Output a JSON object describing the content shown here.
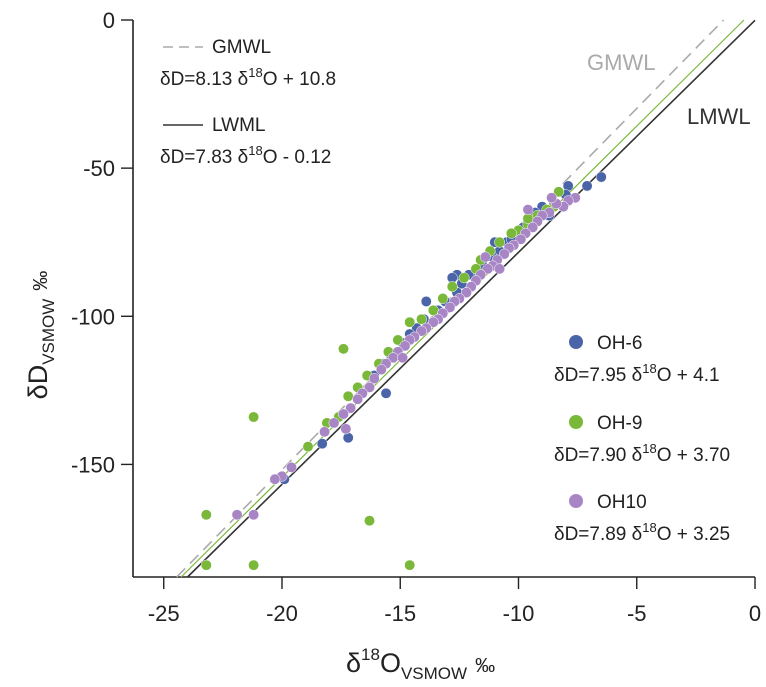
{
  "chart_data": {
    "type": "scatter",
    "xlim": [
      -26.3,
      0
    ],
    "ylim": [
      -188,
      0
    ],
    "x_ticks": [
      -25,
      -20,
      -15,
      -10,
      -5,
      0
    ],
    "y_ticks": [
      0,
      -50,
      -100,
      -150
    ],
    "x_tick_labels": [
      "-25",
      "-20",
      "-15",
      "-10",
      "-5",
      "0"
    ],
    "y_tick_labels": [
      "0",
      "-50",
      "-100",
      "-150"
    ],
    "grid": false,
    "xlabel": {
      "base": "δ",
      "sup": "18",
      "main": "O",
      "sub": "VSMOW",
      "unit": "‰"
    },
    "ylabel": {
      "main": "δD",
      "sub": "VSMOW",
      "unit": "‰"
    },
    "colors": {
      "oh6": "#4a64a8",
      "oh9": "#7ab83a",
      "oh10": "#a886c6",
      "gmwl": "#aaaaaa",
      "lmwl": "#333333"
    },
    "lines": [
      {
        "id": "gmwl",
        "label": "GMWL",
        "slope": 8.13,
        "intercept": 10.8,
        "style": "dashed"
      },
      {
        "id": "lmwl",
        "label": "LMWL",
        "slope": 7.83,
        "intercept": -0.12,
        "style": "solid"
      },
      {
        "id": "oh9-fit",
        "slope": 7.9,
        "intercept": 3.7,
        "style": "solid"
      }
    ],
    "line_legend": [
      {
        "name": "GMWL",
        "eq_pre": "δD=8.13 δ",
        "eq_sup": "18",
        "eq_post": "O + 10.8"
      },
      {
        "name": "LWML",
        "eq_pre": "δD=7.83 δ",
        "eq_sup": "18",
        "eq_post": "O - 0.12"
      }
    ],
    "series_legend": [
      {
        "name": "OH-6",
        "eq_pre": "δD=7.95 δ",
        "eq_sup": "18",
        "eq_post": "O + 4.1"
      },
      {
        "name": "OH-9",
        "eq_pre": "δD=7.90 δ",
        "eq_sup": "18",
        "eq_post": "O + 3.70"
      },
      {
        "name": "OH10",
        "eq_pre": "δD=7.89 δ",
        "eq_sup": "18",
        "eq_post": "O + 3.25"
      }
    ],
    "series": [
      {
        "name": "OH-6",
        "color_key": "oh6",
        "points": [
          [
            -6.5,
            -53
          ],
          [
            -7.1,
            -56
          ],
          [
            -7.9,
            -56
          ],
          [
            -8.0,
            -59
          ],
          [
            -8.5,
            -62
          ],
          [
            -9.0,
            -63
          ],
          [
            -9.3,
            -65
          ],
          [
            -9.6,
            -68
          ],
          [
            -9.8,
            -70
          ],
          [
            -10.1,
            -72
          ],
          [
            -10.5,
            -75
          ],
          [
            -10.8,
            -78
          ],
          [
            -11.1,
            -80
          ],
          [
            -11.5,
            -83
          ],
          [
            -11.8,
            -85
          ],
          [
            -12.1,
            -86
          ],
          [
            -12.4,
            -89
          ],
          [
            -12.6,
            -86
          ],
          [
            -12.8,
            -87
          ],
          [
            -12.6,
            -92
          ],
          [
            -13.1,
            -95
          ],
          [
            -13.4,
            -98
          ],
          [
            -13.9,
            -95
          ],
          [
            -14.0,
            -101
          ],
          [
            -14.3,
            -104
          ],
          [
            -14.6,
            -106
          ],
          [
            -14.9,
            -109
          ],
          [
            -15.4,
            -113
          ],
          [
            -15.7,
            -116
          ],
          [
            -16.1,
            -120
          ],
          [
            -15.6,
            -126
          ],
          [
            -17.2,
            -141
          ],
          [
            -18.3,
            -143
          ],
          [
            -19.9,
            -155
          ],
          [
            -11.0,
            -75
          ],
          [
            -10.3,
            -74
          ],
          [
            -8.7,
            -66
          ]
        ]
      },
      {
        "name": "OH-9",
        "color_key": "oh9",
        "points": [
          [
            -8.3,
            -58
          ],
          [
            -8.5,
            -63
          ],
          [
            -8.8,
            -64
          ],
          [
            -9.2,
            -66
          ],
          [
            -9.6,
            -69
          ],
          [
            -10.0,
            -71
          ],
          [
            -10.3,
            -72
          ],
          [
            -10.8,
            -75
          ],
          [
            -11.2,
            -78
          ],
          [
            -11.6,
            -81
          ],
          [
            -11.8,
            -84
          ],
          [
            -12.3,
            -87
          ],
          [
            -12.8,
            -90
          ],
          [
            -13.2,
            -94
          ],
          [
            -13.6,
            -98
          ],
          [
            -14.1,
            -101
          ],
          [
            -14.6,
            -102
          ],
          [
            -15.1,
            -108
          ],
          [
            -15.5,
            -112
          ],
          [
            -15.9,
            -116
          ],
          [
            -16.4,
            -120
          ],
          [
            -16.8,
            -124
          ],
          [
            -17.2,
            -127
          ],
          [
            -17.4,
            -111
          ],
          [
            -17.6,
            -134
          ],
          [
            -18.1,
            -136
          ],
          [
            -18.9,
            -144
          ],
          [
            -21.2,
            -134
          ],
          [
            -23.2,
            -167
          ],
          [
            -23.2,
            -184
          ],
          [
            -21.2,
            -184
          ],
          [
            -16.3,
            -169
          ],
          [
            -14.6,
            -184
          ],
          [
            -9.6,
            -67
          ]
        ]
      },
      {
        "name": "OH10",
        "color_key": "oh10",
        "points": [
          [
            -7.6,
            -60
          ],
          [
            -7.9,
            -61
          ],
          [
            -8.1,
            -63
          ],
          [
            -8.4,
            -62
          ],
          [
            -8.7,
            -65
          ],
          [
            -9.0,
            -66
          ],
          [
            -9.2,
            -68
          ],
          [
            -9.4,
            -70
          ],
          [
            -9.7,
            -72
          ],
          [
            -9.9,
            -74
          ],
          [
            -10.2,
            -76
          ],
          [
            -10.4,
            -77
          ],
          [
            -10.6,
            -79
          ],
          [
            -10.9,
            -81
          ],
          [
            -11.1,
            -83
          ],
          [
            -11.3,
            -84
          ],
          [
            -11.6,
            -86
          ],
          [
            -11.8,
            -88
          ],
          [
            -12.0,
            -90
          ],
          [
            -12.2,
            -92
          ],
          [
            -12.5,
            -94
          ],
          [
            -12.7,
            -95
          ],
          [
            -12.9,
            -97
          ],
          [
            -13.2,
            -99
          ],
          [
            -13.4,
            -101
          ],
          [
            -13.6,
            -102
          ],
          [
            -13.9,
            -104
          ],
          [
            -14.1,
            -105
          ],
          [
            -14.4,
            -107
          ],
          [
            -14.6,
            -108
          ],
          [
            -14.8,
            -110
          ],
          [
            -15.1,
            -112
          ],
          [
            -15.3,
            -114
          ],
          [
            -15.6,
            -116
          ],
          [
            -15.8,
            -118
          ],
          [
            -16.1,
            -121
          ],
          [
            -16.3,
            -124
          ],
          [
            -16.6,
            -126
          ],
          [
            -16.8,
            -128
          ],
          [
            -17.1,
            -131
          ],
          [
            -17.4,
            -133
          ],
          [
            -17.8,
            -136
          ],
          [
            -18.2,
            -139
          ],
          [
            -19.6,
            -151
          ],
          [
            -20.0,
            -154
          ],
          [
            -20.3,
            -155
          ],
          [
            -21.2,
            -167
          ],
          [
            -21.9,
            -167
          ],
          [
            -17.3,
            -138
          ],
          [
            -14.9,
            -114
          ],
          [
            -11.4,
            -80
          ],
          [
            -9.6,
            -64
          ],
          [
            -8.6,
            -60
          ],
          [
            -10.8,
            -84
          ]
        ]
      }
    ],
    "line_labels_on_plot": [
      {
        "text": "GMWL",
        "color_key": "gmwl"
      },
      {
        "text": "LMWL",
        "color_key": "lmwl"
      }
    ]
  }
}
